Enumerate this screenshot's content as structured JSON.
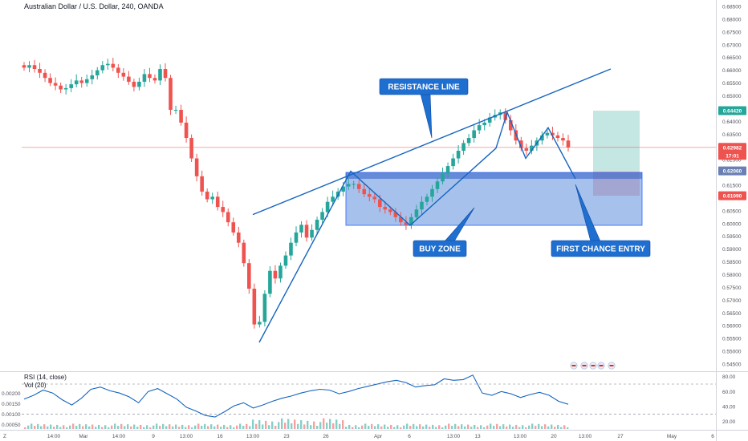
{
  "header": {
    "title": "Australian Dollar / U.S. Dollar, 240, OANDA"
  },
  "indicators": {
    "rsi_label": "RSI (14, close)",
    "vol_label": "Vol (20)"
  },
  "corner_label": "Z",
  "colors": {
    "up": "#26a69a",
    "down": "#ef5350",
    "line": "#1565c0",
    "zone_fill": "#5c8fdc",
    "callout_fill": "#1e6fd0",
    "rsi_line": "#1565c0",
    "target_fill": "#b2dfdb",
    "stop_fill": "#f4b6b6"
  },
  "annotations": [
    {
      "key": "resistance",
      "text": "RESISTANCE LINE"
    },
    {
      "key": "buyzone",
      "text": "BUY ZONE"
    },
    {
      "key": "entry",
      "text": "FIRST CHANCE ENTRY"
    }
  ],
  "chart_data": {
    "type": "candlestick",
    "title": "Australian Dollar / U.S. Dollar, 240, OANDA",
    "price_axis": {
      "ticks": [
        "0.68500",
        "0.68000",
        "0.67500",
        "0.67000",
        "0.66500",
        "0.66000",
        "0.65500",
        "0.65000",
        "0.64500",
        "0.64000",
        "0.63500",
        "0.63000",
        "0.62500",
        "0.62000",
        "0.61500",
        "0.61000",
        "0.60500",
        "0.60000",
        "0.59500",
        "0.59000",
        "0.58500",
        "0.58000",
        "0.57500",
        "0.57000",
        "0.56500",
        "0.56000",
        "0.55500",
        "0.55000",
        "0.54500"
      ],
      "range": [
        0.5425,
        0.6875
      ]
    },
    "time_axis": {
      "ticks": [
        "14:00",
        "Mar",
        "14:00",
        "9",
        "13:00",
        "16",
        "13:00",
        "23",
        "26",
        "Apr",
        "6",
        "13:00",
        "13",
        "13:00",
        "20",
        "13:00",
        "27",
        "May",
        "6"
      ]
    },
    "price_labels": [
      {
        "value": "0.64420",
        "kind": "target"
      },
      {
        "value": "0.62982",
        "kind": "current"
      },
      {
        "value": "17:01",
        "kind": "countdown"
      },
      {
        "value": "0.62060",
        "kind": "entry"
      },
      {
        "value": "0.61090",
        "kind": "stop"
      }
    ],
    "levels": {
      "current": 0.62982,
      "target": 0.6442,
      "entry": 0.6206,
      "stop": 0.6109
    },
    "buy_zone": [
      0.5993,
      0.62
    ],
    "close_path": [
      0.661,
      0.662,
      0.6605,
      0.659,
      0.657,
      0.655,
      0.654,
      0.6525,
      0.653,
      0.6545,
      0.656,
      0.655,
      0.6565,
      0.658,
      0.66,
      0.662,
      0.6625,
      0.661,
      0.659,
      0.6575,
      0.6555,
      0.6535,
      0.6555,
      0.6585,
      0.657,
      0.656,
      0.6605,
      0.657,
      0.6445,
      0.6445,
      0.6395,
      0.6335,
      0.6255,
      0.6185,
      0.6125,
      0.6095,
      0.6105,
      0.6065,
      0.6045,
      0.6005,
      0.5965,
      0.5925,
      0.5845,
      0.5745,
      0.5605,
      0.5615,
      0.5725,
      0.5815,
      0.5785,
      0.5835,
      0.5875,
      0.5925,
      0.5965,
      0.5995,
      0.5945,
      0.5975,
      0.6015,
      0.6045,
      0.6085,
      0.6105,
      0.6125,
      0.6145,
      0.6155,
      0.6155,
      0.6135,
      0.6115,
      0.6105,
      0.6095,
      0.6065,
      0.6055,
      0.6045,
      0.6025,
      0.6005,
      0.5995,
      0.6025,
      0.6055,
      0.6085,
      0.6105,
      0.6135,
      0.6165,
      0.6195,
      0.6225,
      0.6255,
      0.6285,
      0.6315,
      0.6335,
      0.6365,
      0.6385,
      0.6395,
      0.6415,
      0.6425,
      0.6435,
      0.6405,
      0.6365,
      0.6325,
      0.6295,
      0.6285,
      0.6305,
      0.6325,
      0.6345,
      0.6355,
      0.6345,
      0.6335,
      0.6325,
      0.6298
    ],
    "trend_lines": [
      {
        "name": "resistance",
        "from": [
          "Mar 17",
          0.6035
        ],
        "to": [
          "Apr 24",
          0.6605
        ]
      },
      {
        "name": "impulse",
        "path": [
          0.5535,
          0.6205,
          0.5993,
          0.6295,
          0.6435,
          0.6255,
          0.6375,
          0.6175
        ]
      }
    ],
    "rsi": {
      "label": "RSI (14, close)",
      "axis_ticks": [
        "80.00",
        "60.00",
        "40.00",
        "20.00"
      ],
      "levels": [
        70,
        30
      ],
      "values": [
        50,
        55,
        62,
        58,
        49,
        42,
        51,
        63,
        66,
        61,
        58,
        53,
        45,
        60,
        64,
        57,
        50,
        39,
        34,
        28,
        26,
        33,
        41,
        45,
        38,
        42,
        47,
        51,
        54,
        58,
        61,
        63,
        62,
        57,
        60,
        64,
        67,
        70,
        73,
        75,
        72,
        66,
        68,
        69,
        77,
        75,
        76,
        82,
        58,
        55,
        60,
        57,
        52,
        56,
        59,
        55,
        47,
        43
      ]
    },
    "volume": {
      "label": "Vol (20)",
      "axis_ticks": [
        "0.00200",
        "0.00150",
        "0.00100",
        "0.00050"
      ]
    }
  }
}
